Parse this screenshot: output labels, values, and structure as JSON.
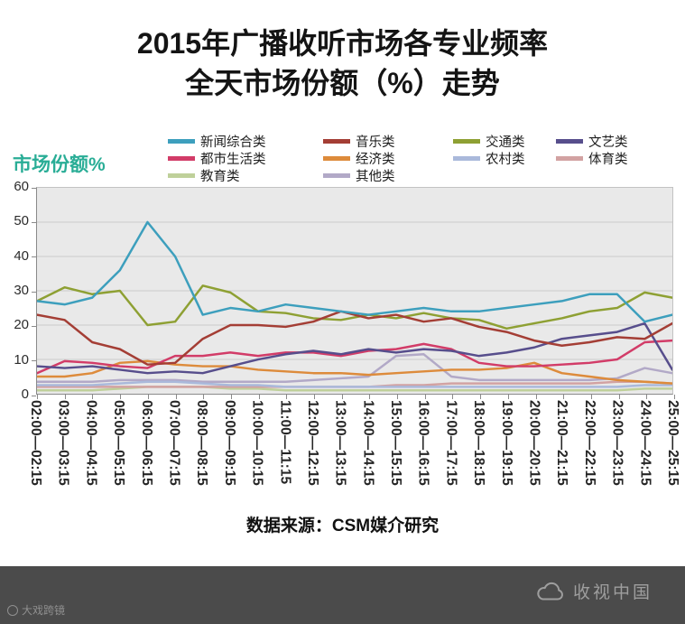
{
  "title": {
    "line1": "2015年广播收听市场各专业频率",
    "line2": "全天市场份额（%）走势"
  },
  "source": "数据来源：CSM媒介研究",
  "footer": {
    "left_logo_text": "大戏跨镜",
    "right_logo_text": "收视中国"
  },
  "colors": {
    "y_axis_title_accent": "#29ad96",
    "footer_bg": "#4b4b4b",
    "footer_text": "#9e9e9e",
    "plot_bg": "#e9e9e9",
    "gridline": "#cbcbcb"
  },
  "chart_data": {
    "type": "line",
    "title": "2015年广播收听市场各专业频率全天市场份额（%）走势",
    "xlabel": "",
    "ylabel": "市场份额%",
    "ylim": [
      0,
      60
    ],
    "yticks": [
      0,
      10,
      20,
      30,
      40,
      50,
      60
    ],
    "grid": true,
    "legend_position": "top",
    "categories": [
      "02:00—02:15",
      "03:00—03:15",
      "04:00—04:15",
      "05:00—05:15",
      "06:00—06:15",
      "07:00—07:15",
      "08:00—08:15",
      "09:00—09:15",
      "10:00—10:15",
      "11:00—11:15",
      "12:00—12:15",
      "13:00—13:15",
      "14:00—14:15",
      "15:00—15:15",
      "16:00—16:15",
      "17:00—17:15",
      "18:00—18:15",
      "19:00—19:15",
      "20:00—20:15",
      "21:00—21:15",
      "22:00—22:15",
      "23:00—23:15",
      "24:00—24:15",
      "25:00—25:15"
    ],
    "series": [
      {
        "name": "新闻综合类",
        "color": "#3d9fbd",
        "values": [
          27,
          26,
          28,
          36,
          50,
          40,
          23,
          25,
          24,
          26,
          25,
          24,
          23,
          24,
          25,
          24,
          24,
          25,
          26,
          27,
          29,
          29,
          21,
          23
        ]
      },
      {
        "name": "音乐类",
        "color": "#a43e35",
        "values": [
          23,
          21.5,
          15,
          13,
          8.5,
          9,
          16,
          20,
          20,
          19.5,
          21,
          24,
          22,
          23,
          21,
          22,
          19.5,
          18,
          15.5,
          14,
          15,
          16.5,
          16,
          20.5
        ]
      },
      {
        "name": "交通类",
        "color": "#8ea033",
        "values": [
          27,
          31,
          29,
          30,
          20,
          21,
          31.5,
          29.5,
          24,
          23.5,
          22,
          21.5,
          23,
          22,
          23.5,
          22,
          21.5,
          19,
          20.5,
          22,
          24,
          25,
          29.5,
          28
        ]
      },
      {
        "name": "文艺类",
        "color": "#574e8c",
        "values": [
          8,
          7.5,
          8,
          7,
          6,
          6.5,
          6,
          8,
          10,
          11.5,
          12.5,
          11.5,
          13,
          12,
          13,
          12.5,
          11,
          12,
          13.5,
          16,
          17,
          18,
          20.5,
          7
        ]
      },
      {
        "name": "都市生活类",
        "color": "#d23c68",
        "values": [
          6,
          9.5,
          9,
          8,
          7.5,
          11,
          11,
          12,
          11,
          12,
          12,
          11,
          12.5,
          13,
          14.5,
          13,
          9,
          8,
          8,
          8.5,
          9,
          10,
          15,
          15.5
        ]
      },
      {
        "name": "经济类",
        "color": "#dd8b3b",
        "values": [
          5,
          5,
          6,
          9,
          9.5,
          8.5,
          8,
          8,
          7,
          6.5,
          6,
          6,
          5.5,
          6,
          6.5,
          7,
          7,
          7.5,
          9,
          6,
          5,
          4,
          3.5,
          3
        ]
      },
      {
        "name": "农村类",
        "color": "#aab9db",
        "values": [
          2.5,
          2.5,
          2.5,
          3,
          3.5,
          3.5,
          3,
          2.5,
          2.5,
          2,
          2,
          2,
          2,
          2,
          2,
          2,
          2,
          2,
          2,
          2,
          2,
          2,
          2.5,
          2.5
        ]
      },
      {
        "name": "体育类",
        "color": "#d2a2a2",
        "values": [
          2,
          2,
          2,
          2,
          2,
          2,
          2,
          2,
          2,
          2,
          2,
          2,
          2,
          2.5,
          2.5,
          3,
          3,
          3,
          3,
          3,
          3,
          3.5,
          3.5,
          3
        ]
      },
      {
        "name": "教育类",
        "color": "#bfd09a",
        "values": [
          1,
          1,
          1,
          1.5,
          2,
          2,
          2,
          1.5,
          1.5,
          1,
          1,
          1,
          1,
          1,
          1,
          1,
          1,
          1,
          1,
          1,
          1,
          1,
          1.5,
          1.5
        ]
      },
      {
        "name": "其他类",
        "color": "#b2a9c7",
        "values": [
          3.5,
          3.5,
          3.5,
          4,
          4,
          4,
          3.5,
          3.5,
          3.5,
          3.5,
          4,
          4.5,
          5,
          11,
          11.5,
          5,
          4,
          4,
          4,
          4,
          4,
          4.5,
          7.5,
          6
        ]
      }
    ]
  }
}
